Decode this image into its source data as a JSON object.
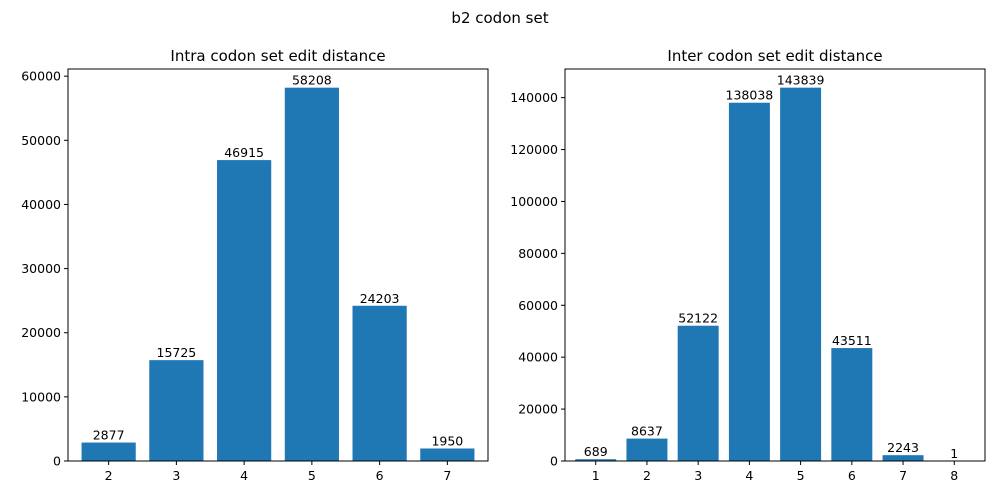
{
  "figure": {
    "suptitle": "b2 codon set",
    "bar_color": "#1f77b4"
  },
  "chart_data": [
    {
      "type": "bar",
      "title": "Intra codon set edit distance",
      "xlabel": "",
      "ylabel": "",
      "categories": [
        "2",
        "3",
        "4",
        "5",
        "6",
        "7"
      ],
      "x": [
        2,
        3,
        4,
        5,
        6,
        7
      ],
      "values": [
        2877,
        15725,
        46915,
        58208,
        24203,
        1950
      ],
      "data_labels": [
        "2877",
        "15725",
        "46915",
        "58208",
        "24203",
        "1950"
      ],
      "ylim": [
        0,
        61119
      ],
      "yticks": [
        0,
        10000,
        20000,
        30000,
        40000,
        50000,
        60000
      ],
      "ytick_labels": [
        "0",
        "10000",
        "20000",
        "30000",
        "40000",
        "50000",
        "60000"
      ],
      "grid": false,
      "legend": "none"
    },
    {
      "type": "bar",
      "title": "Inter codon set edit distance",
      "xlabel": "",
      "ylabel": "",
      "categories": [
        "1",
        "2",
        "3",
        "4",
        "5",
        "6",
        "7",
        "8"
      ],
      "x": [
        1,
        2,
        3,
        4,
        5,
        6,
        7,
        8
      ],
      "values": [
        689,
        8637,
        52122,
        138038,
        143839,
        43511,
        2243,
        1
      ],
      "data_labels": [
        "689",
        "8637",
        "52122",
        "138038",
        "143839",
        "43511",
        "2243",
        "1"
      ],
      "ylim": [
        0,
        151031
      ],
      "yticks": [
        0,
        20000,
        40000,
        60000,
        80000,
        100000,
        120000,
        140000
      ],
      "ytick_labels": [
        "0",
        "20000",
        "40000",
        "60000",
        "80000",
        "100000",
        "120000",
        "140000"
      ],
      "grid": false,
      "legend": "none"
    }
  ]
}
